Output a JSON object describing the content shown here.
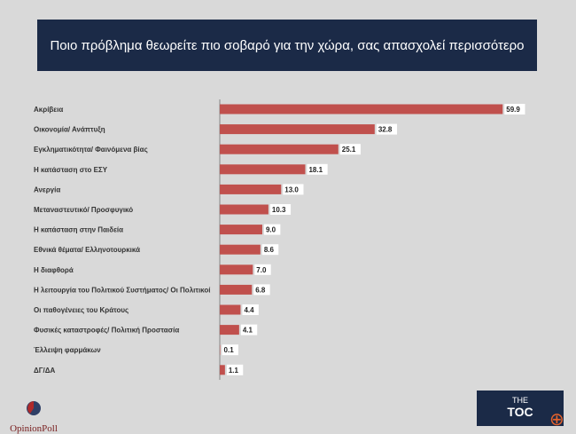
{
  "chart_data": {
    "type": "bar",
    "orientation": "horizontal",
    "title": "Ποιο πρόβλημα θεωρείτε πιο σοβαρό για την χώρα, σας απασχολεί περισσότερο",
    "categories": [
      "Ακρίβεια",
      "Οικονομία/ Ανάπτυξη",
      "Εγκληματικότητα/ Φαινόμενα βίας",
      "Η κατάσταση στο ΕΣΥ",
      "Ανεργία",
      "Μεταναστευτικό/ Προσφυγικό",
      "Η κατάσταση στην Παιδεία",
      "Εθνικά θέματα/ Ελληνοτουρκικά",
      "Η διαφθορά",
      "Η λειτουργία του Πολιτικού Συστήματος/ Οι Πολιτικοί",
      "Οι παθογένειες του Κράτους",
      "Φυσικές καταστροφές/ Πολιτική Προστασία",
      "Έλλειψη φαρμάκων",
      "ΔΓ/ΔΑ"
    ],
    "values": [
      59.9,
      32.8,
      25.1,
      18.1,
      13.0,
      10.3,
      9.0,
      8.6,
      7.0,
      6.8,
      4.4,
      4.1,
      0.1,
      1.1
    ],
    "labels": [
      "59.9",
      "32.8",
      "25.1",
      "18.1",
      "13.0",
      "10.3",
      "9.0",
      "8.6",
      "7.0",
      "6.8",
      "4.4",
      "4.1",
      "0.1",
      "1.1"
    ],
    "color": "#c0504d",
    "grid": false
  },
  "logos": {
    "left": "OpinionPoll",
    "right_top": "THE",
    "right_main": "TOC"
  },
  "colors": {
    "title_bg": "#1b2a47",
    "background": "#d9d9d9"
  }
}
